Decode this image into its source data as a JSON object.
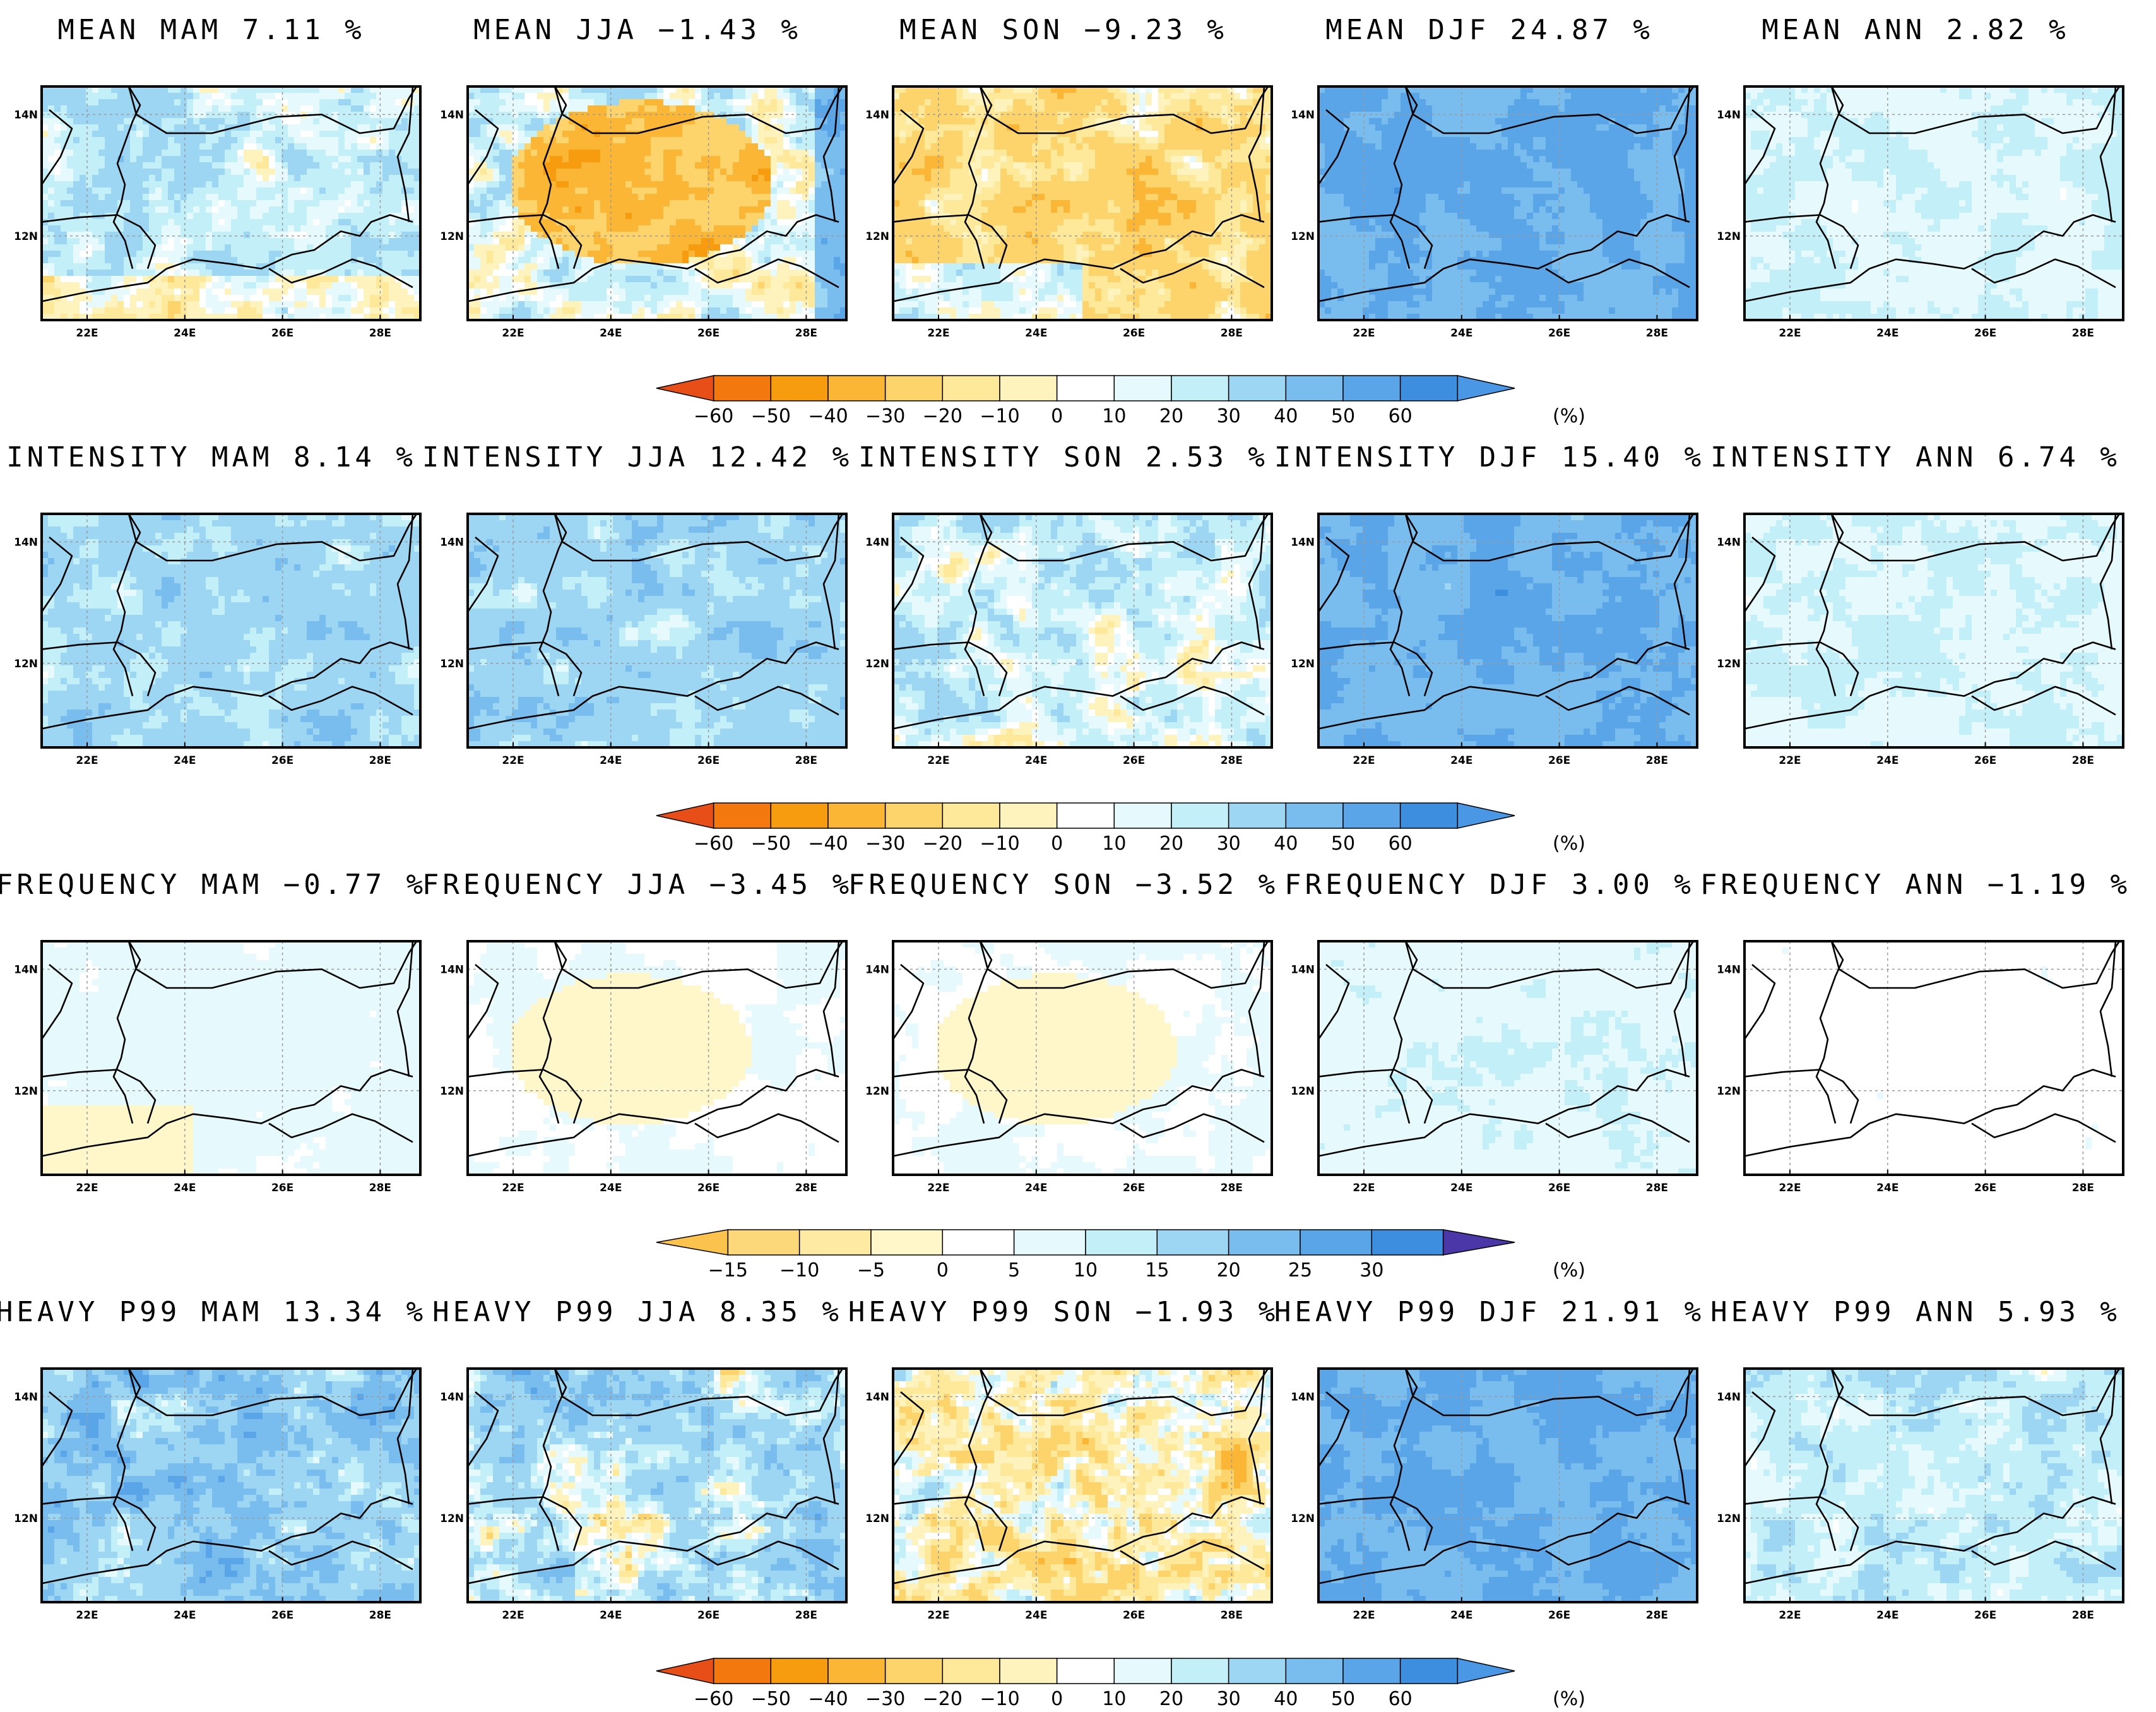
{
  "figure": {
    "lon_ticks": [
      "22E",
      "24E",
      "26E",
      "28E"
    ],
    "lat_ticks": [
      "14N",
      "12N"
    ],
    "rows": [
      {
        "variable": "MEAN",
        "colorbar": "cb60",
        "panels": [
          {
            "title": "MEAN MAM 7.11 %",
            "season": "MAM",
            "value": 7.11,
            "pattern": "mixed_wet"
          },
          {
            "title": "MEAN JJA −1.43 %",
            "season": "JJA",
            "value": -1.43,
            "pattern": "dry_center"
          },
          {
            "title": "MEAN SON −9.23 %",
            "season": "SON",
            "value": -9.23,
            "pattern": "dry"
          },
          {
            "title": "MEAN DJF 24.87 %",
            "season": "DJF",
            "value": 24.87,
            "pattern": "very_wet"
          },
          {
            "title": "MEAN ANN 2.82 %",
            "season": "ANN",
            "value": 2.82,
            "pattern": "light_wet"
          }
        ]
      },
      {
        "variable": "INTENSITY",
        "colorbar": "cb60",
        "panels": [
          {
            "title": "INTENSITY MAM 8.14 %",
            "season": "MAM",
            "value": 8.14,
            "pattern": "wet"
          },
          {
            "title": "INTENSITY JJA 12.42 %",
            "season": "JJA",
            "value": 12.42,
            "pattern": "wet"
          },
          {
            "title": "INTENSITY SON 2.53 %",
            "season": "SON",
            "value": 2.53,
            "pattern": "mixed"
          },
          {
            "title": "INTENSITY DJF 15.40 %",
            "season": "DJF",
            "value": 15.4,
            "pattern": "very_wet"
          },
          {
            "title": "INTENSITY ANN 6.74 %",
            "season": "ANN",
            "value": 6.74,
            "pattern": "light_wet"
          }
        ]
      },
      {
        "variable": "FREQUENCY",
        "colorbar": "cb30",
        "panels": [
          {
            "title": "FREQUENCY MAM −0.77 %",
            "season": "MAM",
            "value": -0.77,
            "pattern": "freq_mam"
          },
          {
            "title": "FREQUENCY JJA −3.45 %",
            "season": "JJA",
            "value": -3.45,
            "pattern": "freq_dry"
          },
          {
            "title": "FREQUENCY SON −3.52 %",
            "season": "SON",
            "value": -3.52,
            "pattern": "freq_dry"
          },
          {
            "title": "FREQUENCY DJF 3.00 %",
            "season": "DJF",
            "value": 3.0,
            "pattern": "freq_wet"
          },
          {
            "title": "FREQUENCY ANN −1.19 %",
            "season": "ANN",
            "value": -1.19,
            "pattern": "freq_flat"
          }
        ]
      },
      {
        "variable": "HEAVY P99",
        "colorbar": "cb60",
        "panels": [
          {
            "title": "HEAVY P99 MAM 13.34 %",
            "season": "MAM",
            "value": 13.34,
            "pattern": "very_wet_noisy"
          },
          {
            "title": "HEAVY P99 JJA 8.35 %",
            "season": "JJA",
            "value": 8.35,
            "pattern": "wet_noisy"
          },
          {
            "title": "HEAVY P99 SON −1.93 %",
            "season": "SON",
            "value": -1.93,
            "pattern": "mixed_noisy"
          },
          {
            "title": "HEAVY P99 DJF 21.91 %",
            "season": "DJF",
            "value": 21.91,
            "pattern": "very_wet"
          },
          {
            "title": "HEAVY P99 ANN 5.93 %",
            "season": "ANN",
            "value": 5.93,
            "pattern": "light_wet_noisy"
          }
        ]
      }
    ],
    "colorbars": {
      "cb60": {
        "labels": [
          "−60",
          "−50",
          "−40",
          "−30",
          "−20",
          "−10",
          "0",
          "10",
          "20",
          "30",
          "40",
          "50",
          "60"
        ],
        "colors": [
          "#e84e18",
          "#f3780d",
          "#f89c0f",
          "#fbb635",
          "#fdd36c",
          "#fee89a",
          "#fff3bd",
          "#ffffff",
          "#e6fafd",
          "#c3eff9",
          "#9dd6f3",
          "#79bdee",
          "#5aa5e8",
          "#3e8ee0",
          "#4a97e6"
        ],
        "unit": "(%)"
      },
      "cb30": {
        "labels": [
          "−15",
          "−10",
          "−5",
          "0",
          "5",
          "10",
          "15",
          "20",
          "25",
          "30"
        ],
        "colors": [
          "#fbc24e",
          "#fdd87b",
          "#feeaa2",
          "#fff6c9",
          "#ffffff",
          "#e6fafd",
          "#c3eff9",
          "#9dd6f3",
          "#79bdee",
          "#5aa5e8",
          "#3e8ee0",
          "#4b37a8"
        ],
        "unit": "(%)"
      }
    }
  }
}
